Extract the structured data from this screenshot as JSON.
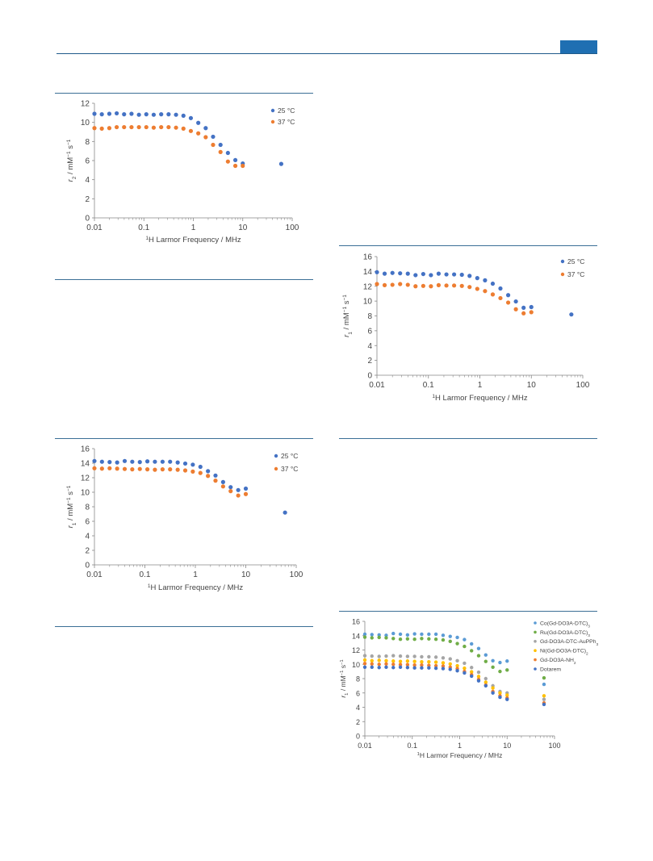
{
  "header": {
    "accent_color": "#1f6fb2",
    "rule_color": "#1f5a8a"
  },
  "colors": {
    "c25": "#4472c4",
    "c37": "#ed7d31"
  },
  "chart_data": [
    {
      "type": "scatter",
      "x_scale": "log",
      "xlim": [
        0.01,
        100
      ],
      "ylim": [
        0,
        12
      ],
      "yticks": [
        0,
        2,
        4,
        6,
        8,
        10,
        12
      ],
      "xticks": [
        0.01,
        0.1,
        1,
        10,
        100
      ],
      "xtick_labels": [
        "0.01",
        "0.1",
        "1",
        "10",
        "100"
      ],
      "xlabel_sup": "1",
      "xlabel_main": "H Larmor Frequency / MHz",
      "ylabel_r": "r",
      "ylabel_sub": "2",
      "ylabel_rest": " / mM",
      "ylabel_sup1": "−1",
      "ylabel_s": " s",
      "ylabel_sup2": "−1",
      "legend_position": "top-right",
      "series": [
        {
          "name": "25 °C",
          "color": "#4472c4",
          "x": [
            0.01,
            0.0141,
            0.02,
            0.0282,
            0.0398,
            0.0562,
            0.0794,
            0.112,
            0.158,
            0.224,
            0.316,
            0.447,
            0.631,
            0.891,
            1.26,
            1.78,
            2.51,
            3.55,
            5.01,
            7.08,
            10.0,
            60
          ],
          "y": [
            10.9,
            10.85,
            10.9,
            10.95,
            10.85,
            10.9,
            10.8,
            10.85,
            10.8,
            10.85,
            10.85,
            10.8,
            10.7,
            10.45,
            9.95,
            9.4,
            8.5,
            7.65,
            6.8,
            6.05,
            5.7,
            5.65
          ]
        },
        {
          "name": "37 °C",
          "color": "#ed7d31",
          "x": [
            0.01,
            0.0141,
            0.02,
            0.0282,
            0.0398,
            0.0562,
            0.0794,
            0.112,
            0.158,
            0.224,
            0.316,
            0.447,
            0.631,
            0.891,
            1.26,
            1.78,
            2.51,
            3.55,
            5.01,
            7.08,
            10.0
          ],
          "y": [
            9.4,
            9.35,
            9.4,
            9.5,
            9.5,
            9.5,
            9.5,
            9.5,
            9.45,
            9.5,
            9.5,
            9.45,
            9.35,
            9.1,
            8.85,
            8.45,
            7.65,
            6.9,
            5.9,
            5.45,
            5.45
          ]
        }
      ]
    },
    {
      "type": "scatter",
      "x_scale": "log",
      "xlim": [
        0.01,
        100
      ],
      "ylim": [
        0,
        16
      ],
      "yticks": [
        0,
        2,
        4,
        6,
        8,
        10,
        12,
        14,
        16
      ],
      "xticks": [
        0.01,
        0.1,
        1,
        10,
        100
      ],
      "xtick_labels": [
        "0.01",
        "0.1",
        "1",
        "10",
        "100"
      ],
      "xlabel_sup": "1",
      "xlabel_main": "H Larmor Frequency / MHz",
      "ylabel_r": "r",
      "ylabel_sub": "1",
      "ylabel_rest": " / mM",
      "ylabel_sup1": "−1",
      "ylabel_s": " s",
      "ylabel_sup2": "−1",
      "legend_position": "top-right",
      "series": [
        {
          "name": "25 °C",
          "color": "#4472c4",
          "x": [
            0.01,
            0.0141,
            0.02,
            0.0282,
            0.0398,
            0.0562,
            0.0794,
            0.112,
            0.158,
            0.224,
            0.316,
            0.447,
            0.631,
            0.891,
            1.26,
            1.78,
            2.51,
            3.55,
            5.01,
            7.08,
            10.0,
            60
          ],
          "y": [
            13.9,
            13.7,
            13.8,
            13.75,
            13.7,
            13.5,
            13.65,
            13.5,
            13.7,
            13.6,
            13.6,
            13.55,
            13.4,
            13.1,
            12.8,
            12.35,
            11.7,
            10.8,
            9.95,
            9.1,
            9.2,
            8.2
          ]
        },
        {
          "name": "37 °C",
          "color": "#ed7d31",
          "x": [
            0.01,
            0.0141,
            0.02,
            0.0282,
            0.0398,
            0.0562,
            0.0794,
            0.112,
            0.158,
            0.224,
            0.316,
            0.447,
            0.631,
            0.891,
            1.26,
            1.78,
            2.51,
            3.55,
            5.01,
            7.08,
            10.0
          ],
          "y": [
            12.3,
            12.15,
            12.2,
            12.3,
            12.2,
            12.0,
            12.05,
            12.0,
            12.15,
            12.1,
            12.1,
            12.05,
            11.9,
            11.65,
            11.35,
            10.9,
            10.4,
            9.8,
            8.9,
            8.35,
            8.5
          ]
        }
      ]
    },
    {
      "type": "scatter",
      "x_scale": "log",
      "xlim": [
        0.01,
        100
      ],
      "ylim": [
        0,
        16
      ],
      "yticks": [
        0,
        2,
        4,
        6,
        8,
        10,
        12,
        14,
        16
      ],
      "xticks": [
        0.01,
        0.1,
        1,
        10,
        100
      ],
      "xtick_labels": [
        "0.01",
        "0.1",
        "1",
        "10",
        "100"
      ],
      "xlabel_sup": "1",
      "xlabel_main": "H Larmor Frequency / MHz",
      "ylabel_r": "r",
      "ylabel_sub": "1",
      "ylabel_rest": " / mM",
      "ylabel_sup1": "−1",
      "ylabel_s": " s",
      "ylabel_sup2": "−1",
      "legend_position": "top-right",
      "series": [
        {
          "name": "25 °C",
          "color": "#4472c4",
          "x": [
            0.01,
            0.0141,
            0.02,
            0.0282,
            0.0398,
            0.0562,
            0.0794,
            0.112,
            0.158,
            0.224,
            0.316,
            0.447,
            0.631,
            0.891,
            1.26,
            1.78,
            2.51,
            3.55,
            5.01,
            7.08,
            10.0,
            60
          ],
          "y": [
            14.3,
            14.2,
            14.15,
            14.1,
            14.3,
            14.2,
            14.15,
            14.25,
            14.2,
            14.2,
            14.2,
            14.1,
            13.95,
            13.8,
            13.5,
            12.9,
            12.3,
            11.4,
            10.7,
            10.3,
            10.5,
            7.2
          ]
        },
        {
          "name": "37 °C",
          "color": "#ed7d31",
          "x": [
            0.01,
            0.0141,
            0.02,
            0.0282,
            0.0398,
            0.0562,
            0.0794,
            0.112,
            0.158,
            0.224,
            0.316,
            0.447,
            0.631,
            0.891,
            1.26,
            1.78,
            2.51,
            3.55,
            5.01,
            7.08,
            10.0
          ],
          "y": [
            13.3,
            13.25,
            13.3,
            13.25,
            13.2,
            13.15,
            13.2,
            13.15,
            13.1,
            13.15,
            13.15,
            13.1,
            13.0,
            12.85,
            12.65,
            12.25,
            11.6,
            10.8,
            10.15,
            9.55,
            9.75
          ]
        }
      ]
    },
    {
      "type": "scatter",
      "x_scale": "log",
      "xlim": [
        0.01,
        100
      ],
      "ylim": [
        0,
        16
      ],
      "yticks": [
        0,
        2,
        4,
        6,
        8,
        10,
        12,
        14,
        16
      ],
      "xticks": [
        0.01,
        0.1,
        1,
        10,
        100
      ],
      "xtick_labels": [
        "0.01",
        "0.1",
        "1",
        "10",
        "100"
      ],
      "xlabel_sup": "1",
      "xlabel_main": "H Larmor Frequency / MHz",
      "ylabel_r": "r",
      "ylabel_sub": "1",
      "ylabel_rest": " / mM",
      "ylabel_sup1": "−1",
      "ylabel_s": " s",
      "ylabel_sup2": "−1",
      "legend_position": "top-right",
      "series": [
        {
          "name": "Co(Gd-DO3A-DTC)",
          "sub": "3",
          "color": "#5b9bd5",
          "x": [
            0.01,
            0.0141,
            0.02,
            0.0282,
            0.0398,
            0.0562,
            0.0794,
            0.112,
            0.158,
            0.224,
            0.316,
            0.447,
            0.631,
            0.891,
            1.26,
            1.78,
            2.51,
            3.55,
            5.01,
            7.08,
            10.0,
            60
          ],
          "y": [
            14.2,
            14.15,
            14.1,
            14.05,
            14.3,
            14.2,
            14.1,
            14.25,
            14.2,
            14.2,
            14.2,
            14.05,
            13.9,
            13.75,
            13.45,
            12.85,
            12.2,
            11.3,
            10.5,
            10.25,
            10.45,
            7.2
          ]
        },
        {
          "name": "Ru(Gd-DO3A-DTC)",
          "sub": "3",
          "color": "#70ad47",
          "x": [
            0.01,
            0.0141,
            0.02,
            0.0282,
            0.0398,
            0.0562,
            0.0794,
            0.112,
            0.158,
            0.224,
            0.316,
            0.447,
            0.631,
            0.891,
            1.26,
            1.78,
            2.51,
            3.55,
            5.01,
            7.08,
            10.0,
            60
          ],
          "y": [
            13.8,
            13.7,
            13.75,
            13.7,
            13.6,
            13.5,
            13.55,
            13.5,
            13.6,
            13.55,
            13.5,
            13.4,
            13.2,
            12.9,
            12.5,
            11.9,
            11.2,
            10.4,
            9.6,
            9.0,
            9.2,
            8.1
          ]
        },
        {
          "name": "Gd-DO3A-DTC-AuPPh",
          "sub": "3",
          "color": "#a5a5a5",
          "x": [
            0.01,
            0.0141,
            0.02,
            0.0282,
            0.0398,
            0.0562,
            0.0794,
            0.112,
            0.158,
            0.224,
            0.316,
            0.447,
            0.631,
            0.891,
            1.26,
            1.78,
            2.51,
            3.55,
            5.01,
            7.08,
            10.0,
            60
          ],
          "y": [
            11.2,
            11.15,
            11.1,
            11.15,
            11.2,
            11.15,
            11.1,
            11.1,
            11.05,
            11.05,
            11.0,
            10.9,
            10.75,
            10.5,
            10.15,
            9.55,
            8.9,
            8.0,
            7.0,
            6.2,
            6.0,
            5.1
          ]
        },
        {
          "name": "Ni(Gd-DO3A-DTC)",
          "sub": "2",
          "color": "#ffc000",
          "x": [
            0.01,
            0.0141,
            0.02,
            0.0282,
            0.0398,
            0.0562,
            0.0794,
            0.112,
            0.158,
            0.224,
            0.316,
            0.447,
            0.631,
            0.891,
            1.26,
            1.78,
            2.51,
            3.55,
            5.01,
            7.08,
            10.0,
            60
          ],
          "y": [
            10.6,
            10.5,
            10.55,
            10.5,
            10.45,
            10.4,
            10.45,
            10.4,
            10.35,
            10.35,
            10.3,
            10.2,
            10.05,
            9.8,
            9.45,
            8.95,
            8.3,
            7.5,
            6.7,
            6.0,
            5.7,
            5.6
          ]
        },
        {
          "name": "Gd-DO3A-NH",
          "sub": "2",
          "color": "#ed7d31",
          "x": [
            0.01,
            0.0141,
            0.02,
            0.0282,
            0.0398,
            0.0562,
            0.0794,
            0.112,
            0.158,
            0.224,
            0.316,
            0.447,
            0.631,
            0.891,
            1.26,
            1.78,
            2.51,
            3.55,
            5.01,
            7.08,
            10.0,
            60
          ],
          "y": [
            10.1,
            10.05,
            10.0,
            10.05,
            10.0,
            9.95,
            9.95,
            9.9,
            9.9,
            9.85,
            9.8,
            9.75,
            9.6,
            9.4,
            9.0,
            8.55,
            7.9,
            7.1,
            6.2,
            5.6,
            5.3,
            4.6
          ]
        },
        {
          "name": "Dotarem",
          "sub": "",
          "color": "#4472c4",
          "x": [
            0.01,
            0.0141,
            0.02,
            0.0282,
            0.0398,
            0.0562,
            0.0794,
            0.112,
            0.158,
            0.224,
            0.316,
            0.447,
            0.631,
            0.891,
            1.26,
            1.78,
            2.51,
            3.55,
            5.01,
            7.08,
            10.0,
            60
          ],
          "y": [
            9.6,
            9.6,
            9.55,
            9.6,
            9.55,
            9.6,
            9.55,
            9.5,
            9.5,
            9.5,
            9.45,
            9.4,
            9.3,
            9.1,
            8.8,
            8.35,
            7.7,
            7.0,
            6.0,
            5.4,
            5.1,
            4.4
          ]
        }
      ]
    }
  ]
}
